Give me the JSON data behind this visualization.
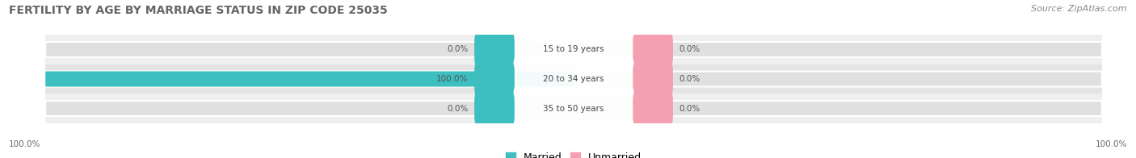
{
  "title": "FERTILITY BY AGE BY MARRIAGE STATUS IN ZIP CODE 25035",
  "source": "Source: ZipAtlas.com",
  "rows": [
    {
      "label": "15 to 19 years",
      "married": 0.0,
      "unmarried": 0.0
    },
    {
      "label": "20 to 34 years",
      "married": 100.0,
      "unmarried": 0.0
    },
    {
      "label": "35 to 50 years",
      "married": 0.0,
      "unmarried": 0.0
    }
  ],
  "married_color": "#3dbfbf",
  "unmarried_color": "#f4a0b0",
  "pill_bg_color": "#e0e0e0",
  "row_bg_colors": [
    "#efefef",
    "#e4e4e4",
    "#efefef"
  ],
  "axis_min": -100,
  "axis_max": 100,
  "left_label": "100.0%",
  "right_label": "100.0%",
  "title_fontsize": 10,
  "source_fontsize": 8,
  "legend_fontsize": 9,
  "bar_height": 0.52,
  "fig_bg_color": "#ffffff"
}
